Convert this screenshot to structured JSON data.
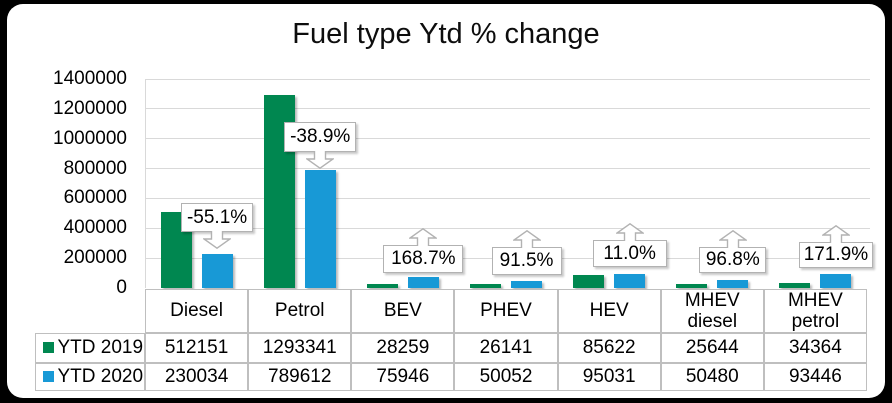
{
  "window": {
    "background": "#000000",
    "surface": "#ffffff"
  },
  "chart_data": {
    "type": "bar",
    "title": "Fuel type Ytd % change",
    "categories": [
      "Diesel",
      "Petrol",
      "BEV",
      "PHEV",
      "HEV",
      "MHEV diesel",
      "MHEV petrol"
    ],
    "series": [
      {
        "name": "YTD 2019",
        "color": "#008750",
        "values": [
          512151,
          1293341,
          28259,
          26141,
          85622,
          25644,
          34364
        ]
      },
      {
        "name": "YTD 2020",
        "color": "#1899D6",
        "values": [
          230034,
          789612,
          75946,
          50052,
          95031,
          50480,
          93446
        ]
      }
    ],
    "callouts": [
      {
        "category": "Diesel",
        "label": "-55.1%",
        "direction": "down"
      },
      {
        "category": "Petrol",
        "label": "-38.9%",
        "direction": "down"
      },
      {
        "category": "BEV",
        "label": "168.7%",
        "direction": "up"
      },
      {
        "category": "PHEV",
        "label": "91.5%",
        "direction": "up"
      },
      {
        "category": "HEV",
        "label": "11.0%",
        "direction": "up"
      },
      {
        "category": "MHEV diesel",
        "label": "96.8%",
        "direction": "up"
      },
      {
        "category": "MHEV petrol",
        "label": "171.9%",
        "direction": "up"
      }
    ],
    "y_ticks": [
      "0",
      "200000",
      "400000",
      "600000",
      "800000",
      "1000000",
      "1200000",
      "1400000"
    ],
    "ylim": [
      0,
      1400000
    ],
    "grid": true,
    "gridline_color": "#d9d9d9",
    "table_border_color": "#bfbfbf",
    "legend_position": "data-table-left"
  }
}
